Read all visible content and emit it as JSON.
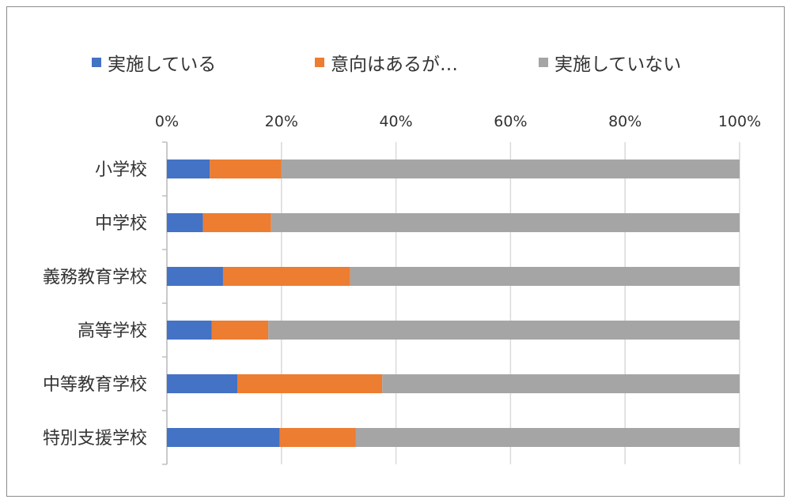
{
  "chart_data": {
    "type": "bar",
    "orientation": "horizontal",
    "stacked": "percent",
    "categories": [
      "小学校",
      "中学校",
      "義務教育学校",
      "高等学校",
      "中等教育学校",
      "特別支援学校"
    ],
    "series": [
      {
        "name": "実施している",
        "color": "#4472C4",
        "values": [
          7.5,
          6.3,
          9.8,
          7.8,
          12.3,
          19.7
        ]
      },
      {
        "name": "意向はあるが…",
        "color": "#ED7D31",
        "values": [
          12.5,
          11.9,
          22.2,
          9.9,
          25.3,
          13.3
        ]
      },
      {
        "name": "実施していない",
        "color": "#A5A5A5",
        "values": [
          80.0,
          81.8,
          68.0,
          82.3,
          62.4,
          67.0
        ]
      }
    ],
    "x_ticks": [
      "0%",
      "20%",
      "40%",
      "60%",
      "80%",
      "100%"
    ],
    "xlim": [
      0,
      100
    ],
    "x_axis_position": "top",
    "grid": true,
    "legend_position": "top",
    "title": "",
    "xlabel": "",
    "ylabel": ""
  }
}
